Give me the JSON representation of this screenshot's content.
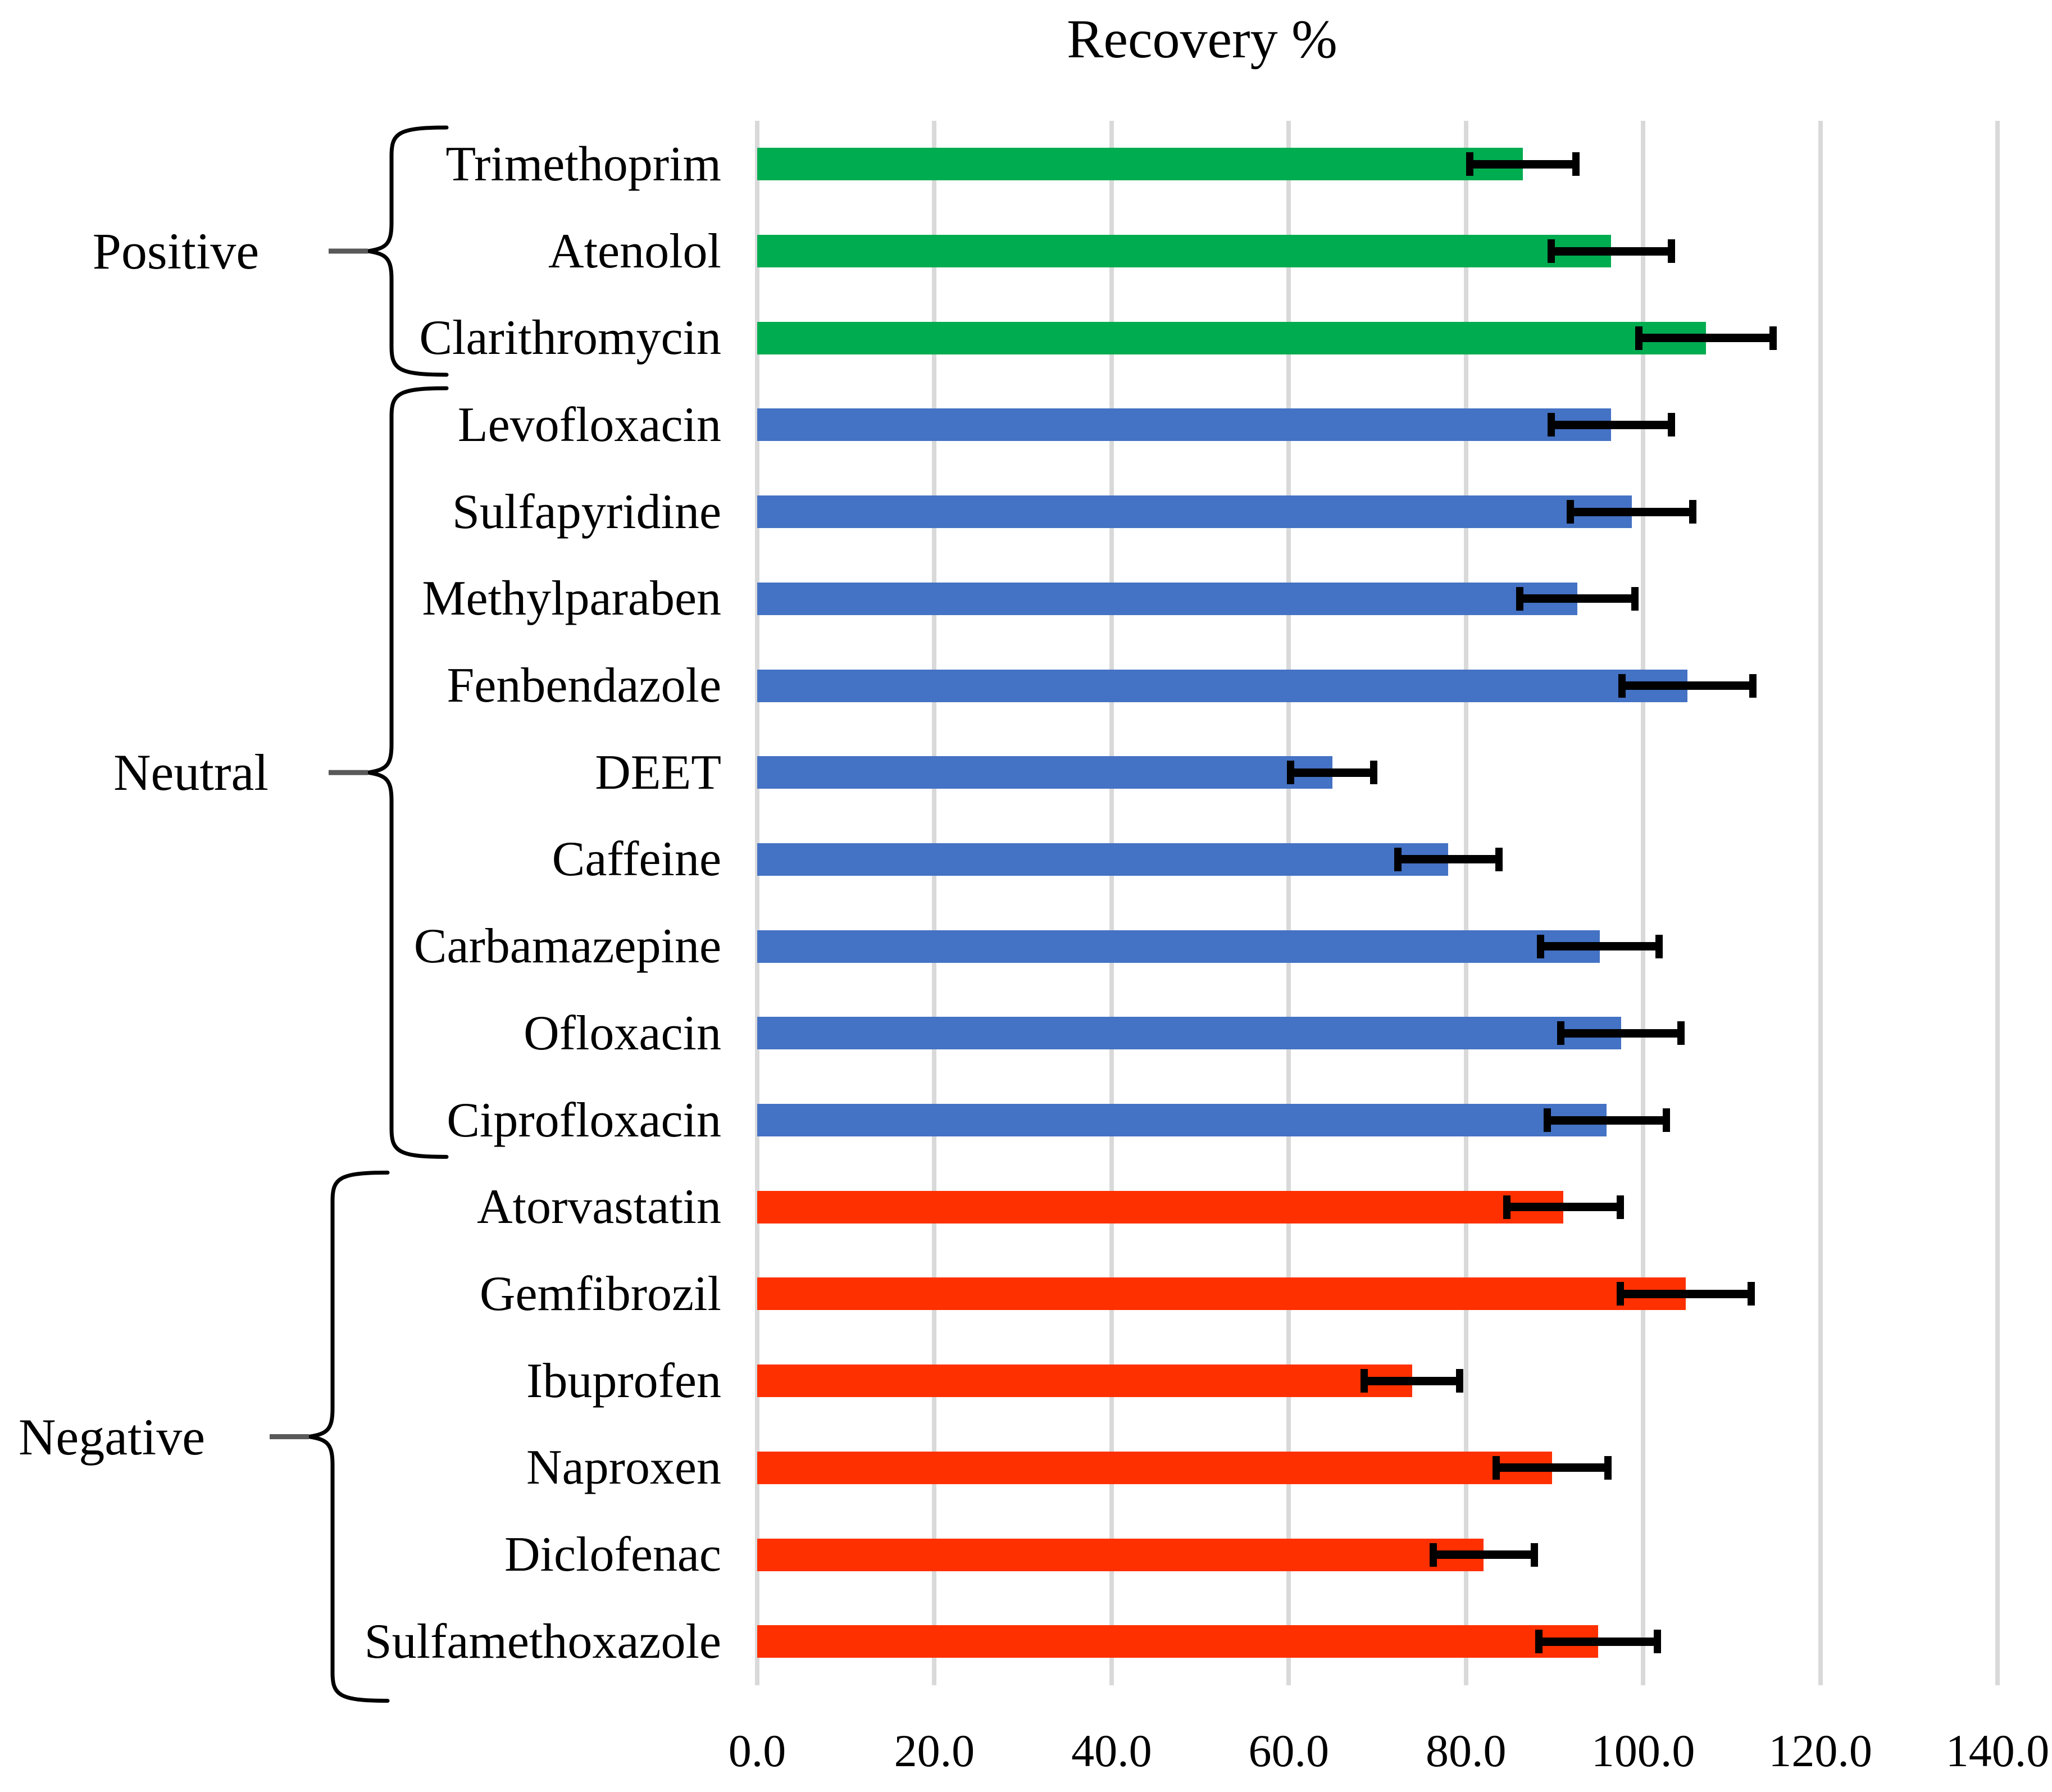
{
  "title": "Recovery %",
  "chart_data": {
    "type": "bar",
    "orientation": "horizontal",
    "title": "Recovery %",
    "xlim": [
      0,
      140
    ],
    "x_tick_step": 20,
    "x_ticks": [
      "0.0",
      "20.0",
      "40.0",
      "60.0",
      "80.0",
      "100.0",
      "120.0",
      "140.0"
    ],
    "grid": "vertical-only",
    "legend": "none",
    "error_bars": true,
    "colors": {
      "grid": "#D9D9D9",
      "error_bar": "#000000",
      "text": "#000000",
      "background": "#FFFFFF",
      "connector": "#595959"
    },
    "groups": [
      {
        "name": "Positive",
        "color": "#00AC50",
        "items": [
          {
            "label": "Trimethoprim",
            "value": 86.4,
            "error": 6.0
          },
          {
            "label": "Atenolol",
            "value": 96.4,
            "error": 6.8
          },
          {
            "label": "Clarithromycin",
            "value": 107.1,
            "error": 7.6
          }
        ]
      },
      {
        "name": "Neutral",
        "color": "#4472C4",
        "items": [
          {
            "label": "Levofloxacin",
            "value": 96.4,
            "error": 6.8
          },
          {
            "label": "Sulfapyridine",
            "value": 98.7,
            "error": 6.9
          },
          {
            "label": "Methylparaben",
            "value": 92.6,
            "error": 6.5
          },
          {
            "label": "Fenbendazole",
            "value": 105.0,
            "error": 7.4
          },
          {
            "label": "DEET",
            "value": 64.9,
            "error": 4.7
          },
          {
            "label": "Caffeine",
            "value": 78.0,
            "error": 5.7
          },
          {
            "label": "Carbamazepine",
            "value": 95.1,
            "error": 6.7
          },
          {
            "label": "Ofloxacin",
            "value": 97.5,
            "error": 6.8
          },
          {
            "label": "Ciprofloxacin",
            "value": 95.9,
            "error": 6.7
          }
        ]
      },
      {
        "name": "Negative",
        "color": "#FF3000",
        "items": [
          {
            "label": "Atorvastatin",
            "value": 91.0,
            "error": 6.4
          },
          {
            "label": "Gemfibrozil",
            "value": 104.8,
            "error": 7.4
          },
          {
            "label": "Ibuprofen",
            "value": 73.9,
            "error": 5.4
          },
          {
            "label": "Naproxen",
            "value": 89.7,
            "error": 6.3
          },
          {
            "label": "Diclofenac",
            "value": 82.0,
            "error": 5.7
          },
          {
            "label": "Sulfamethoxazole",
            "value": 94.9,
            "error": 6.7
          }
        ]
      }
    ]
  }
}
